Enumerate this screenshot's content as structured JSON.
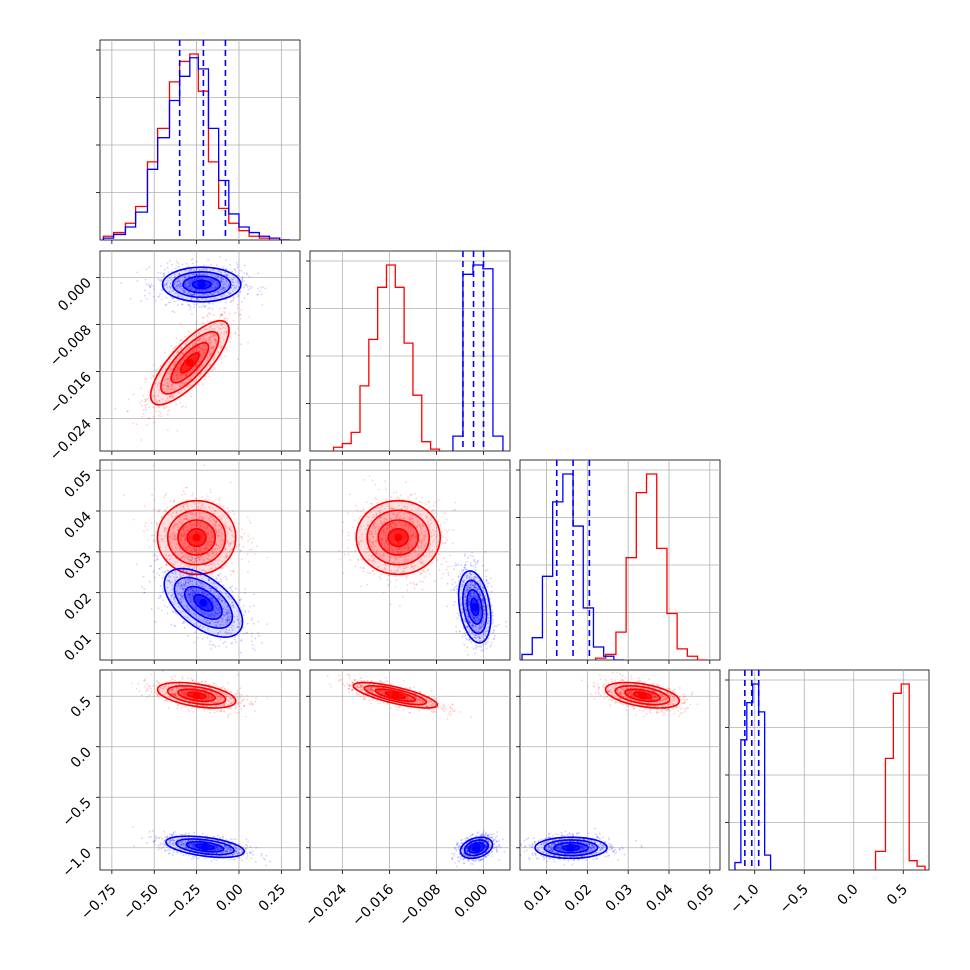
{
  "chart_data": {
    "type": "corner",
    "title": "",
    "series": [
      {
        "name": "",
        "color": "#ff0000"
      },
      {
        "name": "",
        "color": "#0000ff"
      }
    ],
    "parameters": [
      {
        "index": 0,
        "range": [
          -0.82,
          0.36
        ],
        "ticks": [
          -0.75,
          -0.5,
          -0.25,
          0.0,
          0.25
        ],
        "tick_labels": [
          "−0.75",
          "−0.50",
          "−0.25",
          "0.00",
          "0.25"
        ],
        "quantiles_blue": [
          -0.35,
          -0.21,
          -0.08
        ],
        "hist_red_x": [
          -0.8,
          -0.74,
          -0.67,
          -0.61,
          -0.54,
          -0.48,
          -0.41,
          -0.35,
          -0.29,
          -0.24,
          -0.18,
          -0.12,
          -0.06,
          0.0,
          0.06,
          0.12,
          0.18,
          0.24,
          0.3
        ],
        "hist_red_y": [
          0.02,
          0.04,
          0.09,
          0.18,
          0.42,
          0.6,
          0.85,
          0.96,
          1.0,
          0.8,
          0.42,
          0.17,
          0.09,
          0.05,
          0.02,
          0.01,
          0.0,
          0.0
        ],
        "hist_blue_y": [
          0.01,
          0.03,
          0.07,
          0.15,
          0.38,
          0.55,
          0.75,
          0.88,
          0.98,
          0.92,
          0.6,
          0.32,
          0.14,
          0.07,
          0.04,
          0.02,
          0.01,
          0.0
        ]
      },
      {
        "index": 1,
        "range": [
          -0.0295,
          0.0045
        ],
        "ticks": [
          -0.024,
          -0.016,
          -0.008,
          0.0
        ],
        "tick_labels": [
          "−0.024",
          "−0.016",
          "−0.008",
          "0.000"
        ],
        "quantiles_blue": [
          -0.0035,
          -0.0017,
          0.0
        ],
        "hist_red_x": [
          -0.0255,
          -0.024,
          -0.0225,
          -0.021,
          -0.0195,
          -0.018,
          -0.0165,
          -0.015,
          -0.0135,
          -0.012,
          -0.0105,
          -0.009,
          -0.0075
        ],
        "hist_red_y": [
          0.02,
          0.04,
          0.1,
          0.35,
          0.6,
          0.88,
          1.0,
          0.88,
          0.58,
          0.3,
          0.05,
          0.01
        ],
        "hist_blue_x": [
          -0.0052,
          -0.0035,
          -0.0018,
          -0.0001,
          0.0016,
          0.0033
        ],
        "hist_blue_y": [
          0.08,
          0.95,
          1.0,
          0.98,
          0.08
        ]
      },
      {
        "index": 2,
        "range": [
          0.0035,
          0.0525
        ],
        "ticks": [
          0.01,
          0.02,
          0.03,
          0.04,
          0.05
        ],
        "tick_labels": [
          "0.01",
          "0.02",
          "0.03",
          "0.04",
          "0.05"
        ],
        "quantiles_blue": [
          0.0125,
          0.0165,
          0.0205
        ],
        "hist_blue_x": [
          0.004,
          0.0065,
          0.009,
          0.0115,
          0.014,
          0.0165,
          0.019,
          0.0215,
          0.024,
          0.0265,
          0.029
        ],
        "hist_blue_y": [
          0.03,
          0.12,
          0.45,
          0.85,
          1.0,
          0.72,
          0.28,
          0.07,
          0.02,
          0.0
        ],
        "hist_red_x": [
          0.022,
          0.0245,
          0.027,
          0.0295,
          0.032,
          0.0345,
          0.037,
          0.0395,
          0.042,
          0.0445,
          0.047,
          0.0495
        ],
        "hist_red_y": [
          0.01,
          0.03,
          0.15,
          0.55,
          0.9,
          1.0,
          0.6,
          0.25,
          0.06,
          0.02,
          0.0
        ]
      },
      {
        "index": 3,
        "range": [
          -1.26,
          0.76
        ],
        "ticks": [
          -1.0,
          -0.5,
          0.0,
          0.5
        ],
        "tick_labels": [
          "−1.0",
          "−0.5",
          "0.0",
          "0.5"
        ],
        "tick_labels_y": [
          "−1.0",
          "−0.5",
          "0.0",
          "0.5"
        ],
        "y_ticks": [
          -1.0,
          -0.5,
          0.0,
          0.5
        ],
        "quantiles_blue": [
          -1.1,
          -1.03,
          -0.96
        ],
        "hist_blue_x": [
          -1.2,
          -1.14,
          -1.08,
          -1.02,
          -0.96,
          -0.9,
          -0.84
        ],
        "hist_blue_y": [
          0.04,
          0.7,
          0.9,
          1.0,
          0.85,
          0.08
        ],
        "hist_red_x": [
          0.22,
          0.32,
          0.4,
          0.48,
          0.56,
          0.64,
          0.72
        ],
        "hist_red_y": [
          0.1,
          0.6,
          0.95,
          1.0,
          0.05,
          0.02
        ]
      }
    ],
    "pairs": [
      {
        "row": 1,
        "col": 0,
        "red": {
          "mx": -0.29,
          "my": -0.0145,
          "sx": 0.11,
          "sy": 0.0034,
          "rho": 0.78
        },
        "blue": {
          "mx": -0.22,
          "my": -0.0012,
          "sx": 0.11,
          "sy": 0.0014,
          "rho": 0.0
        }
      },
      {
        "row": 2,
        "col": 0,
        "red": {
          "mx": -0.25,
          "my": 0.0335,
          "sx": 0.11,
          "sy": 0.0043,
          "rho": 0.0
        },
        "blue": {
          "mx": -0.21,
          "my": 0.0175,
          "sx": 0.11,
          "sy": 0.004,
          "rho": -0.55
        }
      },
      {
        "row": 2,
        "col": 1,
        "red": {
          "mx": -0.0145,
          "my": 0.0335,
          "sx": 0.0034,
          "sy": 0.0043,
          "rho": 0.0
        },
        "blue": {
          "mx": -0.0015,
          "my": 0.0165,
          "sx": 0.0013,
          "sy": 0.0042,
          "rho": -0.3
        }
      },
      {
        "row": 3,
        "col": 0,
        "red": {
          "mx": -0.25,
          "my": 0.51,
          "sx": 0.11,
          "sy": 0.06,
          "rho": -0.45
        },
        "blue": {
          "mx": -0.2,
          "my": -0.99,
          "sx": 0.11,
          "sy": 0.05,
          "rho": -0.45
        }
      },
      {
        "row": 3,
        "col": 1,
        "red": {
          "mx": -0.015,
          "my": 0.51,
          "sx": 0.0034,
          "sy": 0.06,
          "rho": -0.75
        },
        "blue": {
          "mx": -0.0012,
          "my": -1.0,
          "sx": 0.0013,
          "sy": 0.05,
          "rho": 0.3
        }
      },
      {
        "row": 3,
        "col": 2,
        "red": {
          "mx": 0.0335,
          "my": 0.51,
          "sx": 0.0043,
          "sy": 0.06,
          "rho": -0.45
        },
        "blue": {
          "mx": 0.016,
          "my": -1.0,
          "sx": 0.0042,
          "sy": 0.05,
          "rho": 0.0
        }
      }
    ],
    "grid": true,
    "legend": "none"
  }
}
